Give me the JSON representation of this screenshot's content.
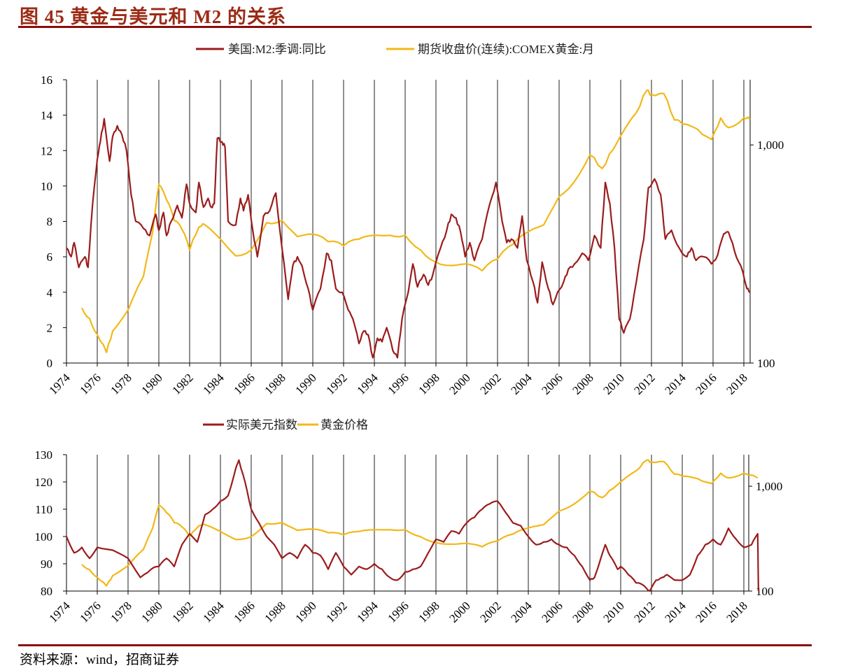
{
  "title": "图 45  黄金与美元和 M2 的关系",
  "source": "资料来源：wind，招商证券",
  "colors": {
    "red": "#9b1c1c",
    "gold": "#f2b817",
    "title": "#9b2b16"
  },
  "chart_data": [
    {
      "type": "line",
      "title": "",
      "legend_position": "top",
      "xlim": [
        1974,
        2018.4
      ],
      "x_ticks": [
        "1974",
        "1976",
        "1978",
        "1980",
        "1982",
        "1984",
        "1986",
        "1988",
        "1990",
        "1992",
        "1994",
        "1996",
        "1998",
        "2000",
        "2002",
        "2004",
        "2006",
        "2008",
        "2010",
        "2012",
        "2014",
        "2016",
        "2018"
      ],
      "y_left": {
        "lim": [
          0,
          16
        ],
        "ticks": [
          "0",
          "2",
          "4",
          "6",
          "8",
          "10",
          "12",
          "14",
          "16"
        ]
      },
      "y_right": {
        "scale": "log",
        "lim": [
          100,
          1990
        ],
        "ticks": [
          {
            "v": 100,
            "label": "100"
          },
          {
            "v": 1000,
            "label": "1,000"
          }
        ]
      },
      "grid": "vertical lines at even years",
      "series": [
        {
          "name": "美国:M2:季调:同比",
          "axis": "left",
          "color": "#9b1c1c",
          "x": [
            1974,
            1974.3,
            1974.5,
            1974.8,
            1975.2,
            1975.4,
            1975.7,
            1976,
            1976.2,
            1976.45,
            1976.8,
            1977,
            1977.3,
            1977.6,
            1977.9,
            1978.2,
            1978.5,
            1979,
            1979.4,
            1979.8,
            1980,
            1980.3,
            1980.5,
            1980.8,
            1981.2,
            1981.5,
            1981.8,
            1982,
            1982.4,
            1982.6,
            1982.9,
            1983.2,
            1983.4,
            1983.6,
            1983.8,
            1984.1,
            1984.3,
            1984.5,
            1985,
            1985.3,
            1985.5,
            1985.8,
            1986.1,
            1986.4,
            1986.8,
            1987.2,
            1987.6,
            1988,
            1988.4,
            1988.7,
            1989,
            1989.3,
            1989.7,
            1990,
            1990.5,
            1990.9,
            1991.2,
            1991.5,
            1991.9,
            1992.3,
            1992.6,
            1993,
            1993.3,
            1993.6,
            1993.9,
            1994.2,
            1994.5,
            1994.8,
            1995.2,
            1995.5,
            1995.8,
            1996.2,
            1996.5,
            1996.8,
            1997.2,
            1997.5,
            1997.8,
            1998.3,
            1998.7,
            1999,
            1999.3,
            1999.6,
            1999.9,
            2000.2,
            2000.5,
            2001,
            2001.5,
            2001.9,
            2002.3,
            2002.6,
            2002.9,
            2003.3,
            2003.6,
            2003.9,
            2004.3,
            2004.6,
            2004.9,
            2005.3,
            2005.6,
            2005.9,
            2006.3,
            2006.6,
            2007,
            2007.5,
            2007.9,
            2008.3,
            2008.7,
            2009,
            2009.3,
            2009.6,
            2009.9,
            2010.2,
            2010.6,
            2011,
            2011.5,
            2011.8,
            2012.2,
            2012.6,
            2012.9,
            2013.3,
            2013.8,
            2014.3,
            2014.6,
            2014.9,
            2015.4,
            2015.9,
            2016.3,
            2016.7,
            2017,
            2017.4,
            2017.8,
            2018.2,
            2018.4
          ],
          "y": [
            6.5,
            6.0,
            6.8,
            5.4,
            6.0,
            5.4,
            9,
            11.5,
            12.5,
            13.8,
            11.4,
            12.8,
            13.4,
            12.9,
            12,
            9.5,
            8,
            7.6,
            7.2,
            8.4,
            7.5,
            8.5,
            7.2,
            8,
            8.9,
            8.2,
            10.1,
            9,
            8.5,
            10.2,
            8.8,
            9.3,
            8.8,
            9,
            12.7,
            12.5,
            12.2,
            8,
            7.8,
            9.3,
            8.6,
            9.5,
            7.5,
            6,
            8.3,
            8.6,
            9.6,
            6.5,
            3.6,
            5.5,
            6,
            5.5,
            4.2,
            3,
            4.2,
            6.2,
            5.8,
            4.2,
            4,
            3,
            2.5,
            1.1,
            1.8,
            1.6,
            0.3,
            1.4,
            1.2,
            2,
            0.7,
            0.3,
            2.5,
            4,
            5.6,
            4.3,
            5,
            4.4,
            5,
            6.5,
            7.5,
            8.4,
            8.2,
            7.4,
            6.0,
            6.8,
            5.8,
            7,
            9,
            10.2,
            8,
            6.8,
            7,
            6.5,
            8.3,
            5.8,
            4.6,
            3.4,
            5.7,
            4.2,
            3.3,
            4,
            4.6,
            5.3,
            5.6,
            6.2,
            5.8,
            7.2,
            6.5,
            10.2,
            9,
            6.5,
            2.5,
            1.7,
            2.5,
            4.5,
            7,
            9.9,
            10.4,
            9.5,
            7,
            7.5,
            6.5,
            6,
            6.5,
            5.8,
            6,
            5.6,
            6.1,
            7.3,
            7.4,
            6.3,
            5.5,
            4.2,
            4.0
          ]
        },
        {
          "name": "期货收盘价(连续):COMEX黄金:月",
          "axis": "right",
          "color": "#f2b817",
          "x": [
            1975,
            1975.5,
            1976,
            1976.6,
            1977,
            1978,
            1979,
            1979.6,
            1980,
            1980.5,
            1981,
            1981.5,
            1982,
            1982.6,
            1983,
            1984,
            1985,
            1986,
            1987,
            1988,
            1989,
            1990,
            1991,
            1992,
            1993,
            1994,
            1995,
            1996,
            1997,
            1998,
            1999,
            2000,
            2001,
            2002,
            2003,
            2004,
            2005,
            2006,
            2007,
            2008,
            2008.8,
            2009.5,
            2010,
            2011,
            2011.7,
            2012,
            2012.8,
            2013.5,
            2014,
            2015,
            2015.9,
            2016.5,
            2017,
            2018,
            2018.4
          ],
          "y": [
            179,
            160,
            135,
            112,
            140,
            175,
            250,
            400,
            660,
            560,
            450,
            410,
            330,
            420,
            430,
            370,
            310,
            330,
            440,
            450,
            380,
            390,
            360,
            345,
            370,
            385,
            385,
            385,
            330,
            290,
            280,
            285,
            265,
            300,
            350,
            400,
            430,
            580,
            680,
            900,
            780,
            950,
            1100,
            1400,
            1780,
            1700,
            1720,
            1300,
            1250,
            1180,
            1060,
            1330,
            1200,
            1330,
            1310
          ]
        }
      ]
    },
    {
      "type": "line",
      "title": "",
      "legend_position": "top",
      "xlim": [
        1974,
        2018.95
      ],
      "x_ticks": [
        "1974",
        "1976",
        "1978",
        "1980",
        "1982",
        "1984",
        "1986",
        "1988",
        "1990",
        "1992",
        "1994",
        "1996",
        "1998",
        "2000",
        "2002",
        "2004",
        "2006",
        "2008",
        "2010",
        "2012",
        "2014",
        "2016",
        "2018"
      ],
      "y_left": {
        "lim": [
          80,
          130
        ],
        "ticks": [
          "80",
          "90",
          "100",
          "110",
          "120",
          "130"
        ]
      },
      "y_right": {
        "scale": "log",
        "lim": [
          100,
          2000
        ],
        "ticks": [
          {
            "v": 100,
            "label": "100"
          },
          {
            "v": 1000,
            "label": "1,000"
          }
        ]
      },
      "grid": "vertical lines at even years",
      "series": [
        {
          "name": "实际美元指数",
          "axis": "left",
          "color": "#9b1c1c",
          "x": [
            1974,
            1974.5,
            1975,
            1975.5,
            1976,
            1977,
            1978,
            1978.8,
            1979.5,
            1980,
            1980.5,
            1981,
            1981.5,
            1982,
            1982.5,
            1983,
            1983.5,
            1984,
            1984.5,
            1985,
            1985.2,
            1985.6,
            1986,
            1986.5,
            1987,
            1987.5,
            1988,
            1988.5,
            1989,
            1989.5,
            1990,
            1990.5,
            1991,
            1991.5,
            1992,
            1992.5,
            1993,
            1993.5,
            1994,
            1994.5,
            1995,
            1995.5,
            1996,
            1996.5,
            1997,
            1997.5,
            1998,
            1998.5,
            1999,
            1999.5,
            2000,
            2000.5,
            2001,
            2001.5,
            2002,
            2002.5,
            2003,
            2003.5,
            2004,
            2004.5,
            2005,
            2005.5,
            2006,
            2006.5,
            2007,
            2007.5,
            2008,
            2008.3,
            2009,
            2009.3,
            2009.8,
            2010,
            2010.5,
            2011,
            2011.5,
            2011.9,
            2012.3,
            2012.7,
            2013,
            2013.5,
            2014,
            2014.5,
            2015,
            2015.5,
            2016,
            2016.5,
            2017,
            2017.5,
            2018,
            2018.5,
            2018.9,
            2018.95
          ],
          "y": [
            100,
            94,
            96,
            92,
            96,
            95,
            92,
            85,
            88,
            89,
            92,
            89,
            97,
            101,
            98,
            108,
            110,
            113,
            115,
            125,
            128,
            120,
            110,
            105,
            100,
            97,
            92,
            94,
            92,
            97,
            94,
            93,
            88,
            94,
            89,
            86,
            89,
            88,
            90,
            88,
            85,
            84,
            87,
            88,
            89,
            94,
            99,
            98,
            102,
            101,
            105,
            107,
            110,
            112,
            113,
            109,
            105,
            104,
            100,
            97,
            98,
            99,
            97,
            96,
            93,
            89,
            84,
            85,
            97,
            93,
            88,
            89,
            86,
            83,
            82,
            80,
            84,
            85,
            86,
            84,
            84,
            86,
            93,
            97,
            99,
            97,
            103,
            99,
            96,
            97,
            101,
            80
          ]
        },
        {
          "name": "黄金价格",
          "axis": "right",
          "color": "#f2b817",
          "x": [
            1975,
            1975.5,
            1976,
            1976.6,
            1977,
            1978,
            1979,
            1979.6,
            1980,
            1980.5,
            1981,
            1981.5,
            1982,
            1982.6,
            1983,
            1984,
            1985,
            1986,
            1987,
            1988,
            1989,
            1990,
            1991,
            1992,
            1993,
            1994,
            1995,
            1996,
            1997,
            1998,
            1999,
            2000,
            2001,
            2002,
            2003,
            2004,
            2005,
            2006,
            2007,
            2008,
            2008.8,
            2009.5,
            2010,
            2011,
            2011.7,
            2012,
            2012.8,
            2013.5,
            2014,
            2015,
            2015.9,
            2016.5,
            2017,
            2018,
            2018.9
          ],
          "y": [
            179,
            160,
            135,
            112,
            140,
            175,
            250,
            400,
            660,
            560,
            450,
            410,
            330,
            420,
            430,
            370,
            310,
            330,
            440,
            450,
            380,
            390,
            360,
            345,
            370,
            385,
            385,
            385,
            330,
            290,
            280,
            285,
            265,
            300,
            350,
            400,
            430,
            580,
            680,
            900,
            780,
            950,
            1100,
            1400,
            1780,
            1700,
            1720,
            1300,
            1250,
            1180,
            1060,
            1330,
            1200,
            1330,
            1200
          ]
        }
      ]
    }
  ]
}
